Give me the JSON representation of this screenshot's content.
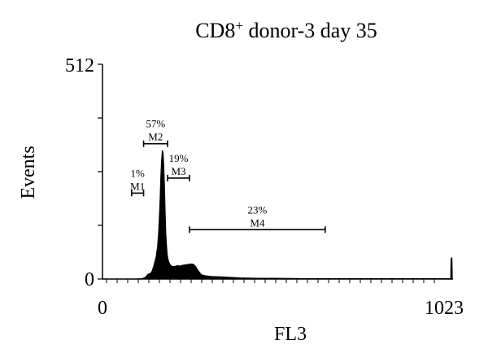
{
  "chart_data": {
    "type": "histogram",
    "title": "CD8",
    "title_sup": "+",
    "title_rest": " donor-3 day 35",
    "xlabel": "FL3",
    "ylabel": "Events",
    "xlim": [
      0,
      1023
    ],
    "ylim": [
      0,
      512
    ],
    "x_ticks": [
      "0",
      "1023"
    ],
    "y_ticks": [
      "0",
      "512"
    ],
    "gates": [
      {
        "name": "M1",
        "percent": "1%",
        "x_range": [
          85,
          120
        ],
        "level": 0.4
      },
      {
        "name": "M2",
        "percent": "57%",
        "x_range": [
          120,
          190
        ],
        "level": 0.63
      },
      {
        "name": "M3",
        "percent": "19%",
        "x_range": [
          190,
          254
        ],
        "level": 0.47
      },
      {
        "name": "M4",
        "percent": "23%",
        "x_range": [
          254,
          650
        ],
        "level": 0.23
      }
    ],
    "profile": [
      [
        0,
        0
      ],
      [
        95,
        0
      ],
      [
        115,
        1
      ],
      [
        122,
        3
      ],
      [
        126,
        5
      ],
      [
        132,
        11
      ],
      [
        138,
        13
      ],
      [
        143,
        16
      ],
      [
        146,
        22
      ],
      [
        149,
        30
      ],
      [
        153,
        42
      ],
      [
        157,
        55
      ],
      [
        161,
        80
      ],
      [
        164,
        115
      ],
      [
        166,
        150
      ],
      [
        168,
        190
      ],
      [
        170,
        240
      ],
      [
        172,
        280
      ],
      [
        174,
        300
      ],
      [
        175,
        307
      ],
      [
        177,
        300
      ],
      [
        179,
        270
      ],
      [
        181,
        220
      ],
      [
        183,
        160
      ],
      [
        185,
        110
      ],
      [
        187,
        80
      ],
      [
        189,
        60
      ],
      [
        191,
        48
      ],
      [
        194,
        40
      ],
      [
        198,
        34
      ],
      [
        203,
        30
      ],
      [
        210,
        30
      ],
      [
        218,
        32
      ],
      [
        226,
        31
      ],
      [
        234,
        33
      ],
      [
        242,
        34
      ],
      [
        250,
        35
      ],
      [
        258,
        36
      ],
      [
        266,
        35
      ],
      [
        272,
        30
      ],
      [
        278,
        22
      ],
      [
        284,
        15
      ],
      [
        290,
        10
      ],
      [
        300,
        8
      ],
      [
        320,
        6
      ],
      [
        350,
        5
      ],
      [
        400,
        3
      ],
      [
        450,
        2
      ],
      [
        500,
        2
      ],
      [
        600,
        1
      ],
      [
        700,
        1
      ],
      [
        800,
        1
      ],
      [
        900,
        1
      ],
      [
        1000,
        1
      ],
      [
        1016,
        1
      ],
      [
        1017,
        50
      ],
      [
        1020,
        50
      ],
      [
        1021,
        0
      ],
      [
        1023,
        0
      ]
    ]
  }
}
